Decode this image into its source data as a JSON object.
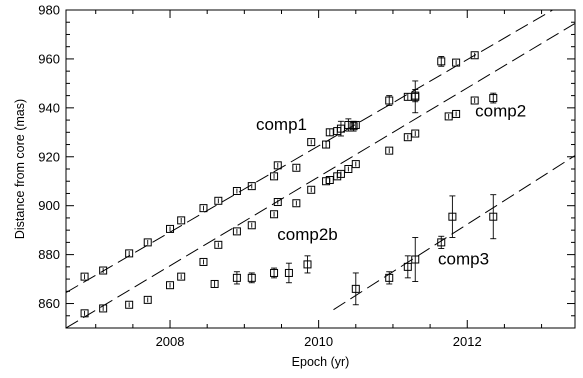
{
  "chart_data": {
    "type": "scatter",
    "xlabel": "Epoch (yr)",
    "ylabel": "Distance from core (mas)",
    "xlim": [
      2006.6,
      2013.45
    ],
    "ylim": [
      850,
      980
    ],
    "xticks": [
      2008,
      2010,
      2012
    ],
    "xtick_labels": [
      "2008",
      "2010",
      "2012"
    ],
    "yticks": [
      860,
      880,
      900,
      920,
      940,
      960,
      980
    ],
    "ytick_labels": [
      "860",
      "880",
      "900",
      "920",
      "940",
      "960",
      "980"
    ],
    "grid": false,
    "marker": "open-square-with-error-bars",
    "fit_line_style": "dashed",
    "series": [
      {
        "name": "comp1",
        "points": [
          {
            "x": 2006.85,
            "y": 871,
            "err": 1
          },
          {
            "x": 2007.1,
            "y": 873.5,
            "err": 1
          },
          {
            "x": 2007.45,
            "y": 880.5,
            "err": 1
          },
          {
            "x": 2007.7,
            "y": 885,
            "err": 1
          },
          {
            "x": 2008.0,
            "y": 890.5,
            "err": 1
          },
          {
            "x": 2008.15,
            "y": 894,
            "err": 1
          },
          {
            "x": 2008.45,
            "y": 899,
            "err": 1
          },
          {
            "x": 2008.65,
            "y": 902,
            "err": 1
          },
          {
            "x": 2008.9,
            "y": 906,
            "err": 1
          },
          {
            "x": 2009.1,
            "y": 908,
            "err": 1
          },
          {
            "x": 2009.4,
            "y": 912,
            "err": 1
          },
          {
            "x": 2009.45,
            "y": 916.5,
            "err": 1
          },
          {
            "x": 2009.7,
            "y": 915.5,
            "err": 1
          },
          {
            "x": 2009.9,
            "y": 926,
            "err": 1
          },
          {
            "x": 2010.1,
            "y": 925,
            "err": 1.5
          },
          {
            "x": 2010.15,
            "y": 930,
            "err": 1.5
          },
          {
            "x": 2010.25,
            "y": 930.5,
            "err": 1.5
          },
          {
            "x": 2010.3,
            "y": 931.5,
            "err": 3
          },
          {
            "x": 2010.4,
            "y": 933,
            "err": 2.5
          },
          {
            "x": 2010.47,
            "y": 932.5,
            "err": 2
          },
          {
            "x": 2010.5,
            "y": 933,
            "err": 1.5
          },
          {
            "x": 2010.95,
            "y": 943,
            "err": 2
          },
          {
            "x": 2011.2,
            "y": 944.5,
            "err": 1.5
          },
          {
            "x": 2011.3,
            "y": 945,
            "err": 2.5
          },
          {
            "x": 2011.3,
            "y": 944.5,
            "err": 6.5
          },
          {
            "x": 2011.65,
            "y": 959,
            "err": 2
          },
          {
            "x": 2011.85,
            "y": 958.5,
            "err": 1
          },
          {
            "x": 2012.1,
            "y": 961.5,
            "err": 1
          }
        ],
        "fit": {
          "x": [
            2006.6,
            2013.15
          ],
          "y": [
            864.5,
            980
          ]
        }
      },
      {
        "name": "comp2",
        "points": [
          {
            "x": 2006.85,
            "y": 856,
            "err": 1
          },
          {
            "x": 2007.1,
            "y": 858,
            "err": 1
          },
          {
            "x": 2007.45,
            "y": 859.5,
            "err": 1
          },
          {
            "x": 2007.7,
            "y": 861.5,
            "err": 1
          },
          {
            "x": 2008.0,
            "y": 867.5,
            "err": 1
          },
          {
            "x": 2008.15,
            "y": 871,
            "err": 1
          },
          {
            "x": 2008.45,
            "y": 877,
            "err": 1
          },
          {
            "x": 2008.65,
            "y": 884,
            "err": 1
          },
          {
            "x": 2008.9,
            "y": 889.5,
            "err": 1
          },
          {
            "x": 2009.1,
            "y": 892,
            "err": 1
          },
          {
            "x": 2009.4,
            "y": 896.5,
            "err": 1
          },
          {
            "x": 2009.45,
            "y": 901.5,
            "err": 1
          },
          {
            "x": 2009.7,
            "y": 901,
            "err": 1
          },
          {
            "x": 2009.9,
            "y": 906.5,
            "err": 1
          },
          {
            "x": 2010.1,
            "y": 910,
            "err": 1
          },
          {
            "x": 2010.15,
            "y": 910.5,
            "err": 1
          },
          {
            "x": 2010.25,
            "y": 912,
            "err": 1
          },
          {
            "x": 2010.3,
            "y": 913,
            "err": 1
          },
          {
            "x": 2010.4,
            "y": 915,
            "err": 1
          },
          {
            "x": 2010.5,
            "y": 917,
            "err": 1
          },
          {
            "x": 2010.95,
            "y": 922.5,
            "err": 1
          },
          {
            "x": 2011.2,
            "y": 928,
            "err": 1
          },
          {
            "x": 2011.3,
            "y": 929.5,
            "err": 1
          },
          {
            "x": 2011.75,
            "y": 936.5,
            "err": 1
          },
          {
            "x": 2011.85,
            "y": 937.5,
            "err": 1
          },
          {
            "x": 2012.1,
            "y": 943,
            "err": 1
          },
          {
            "x": 2012.35,
            "y": 944,
            "err": 2
          }
        ],
        "fit": {
          "x": [
            2006.6,
            2013.45
          ],
          "y": [
            850,
            974.5
          ]
        }
      },
      {
        "name": "comp2b",
        "points": [
          {
            "x": 2008.6,
            "y": 868,
            "err": 1.5
          },
          {
            "x": 2008.9,
            "y": 870.5,
            "err": 2.5
          },
          {
            "x": 2009.1,
            "y": 870.5,
            "err": 2
          },
          {
            "x": 2009.4,
            "y": 872.5,
            "err": 2
          },
          {
            "x": 2009.6,
            "y": 872.5,
            "err": 4
          },
          {
            "x": 2009.85,
            "y": 876,
            "err": 3.5
          }
        ],
        "fit": null
      },
      {
        "name": "comp3",
        "points": [
          {
            "x": 2010.5,
            "y": 866,
            "err": 6.5
          },
          {
            "x": 2010.95,
            "y": 870.5,
            "err": 2.5
          },
          {
            "x": 2011.2,
            "y": 875,
            "err": 4.5
          },
          {
            "x": 2011.3,
            "y": 878,
            "err": 9
          },
          {
            "x": 2011.65,
            "y": 885,
            "err": 2.5
          },
          {
            "x": 2011.8,
            "y": 895.5,
            "err": 8.5
          },
          {
            "x": 2012.35,
            "y": 895.5,
            "err": 9
          }
        ],
        "fit": {
          "x": [
            2010.2,
            2013.45
          ],
          "y": [
            857.5,
            920.5
          ]
        }
      }
    ],
    "annotations": [
      {
        "text": "comp1",
        "x": 2009.5,
        "y": 931
      },
      {
        "text": "comp2",
        "x": 2012.45,
        "y": 936.5
      },
      {
        "text": "comp2b",
        "x": 2009.85,
        "y": 886
      },
      {
        "text": "comp3",
        "x": 2011.95,
        "y": 876
      }
    ]
  }
}
